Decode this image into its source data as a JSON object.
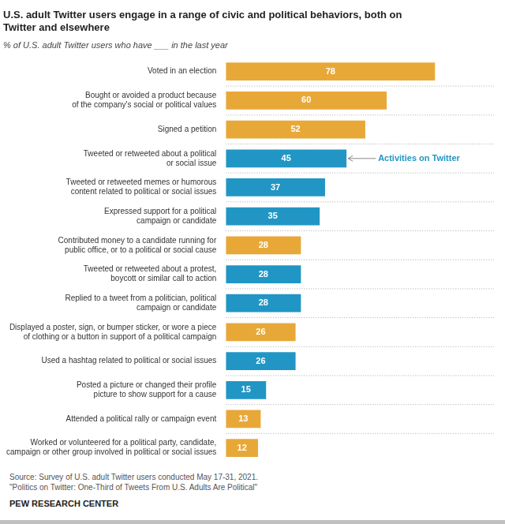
{
  "chart_data": {
    "type": "bar",
    "orientation": "horizontal",
    "title": "U.S. adult Twitter users engage in a range of civic and political behaviors, both on\nTwitter and elsewhere",
    "subtitle": "% of U.S. adult Twitter users who have ___ in the last year",
    "categories": [
      "Voted in an election",
      "Bought or avoided a product because\nof the company's social or political values",
      "Signed a petition",
      "Tweeted or retweeted about a political\nor social issue",
      "Tweeted or retweeted memes or humorous\ncontent related to political or social issues",
      "Expressed support for a political\ncampaign or candidate",
      "Contributed money to a candidate running for\npublic office, or to a political or social cause",
      "Tweeted or retweeted about a protest,\nboycott or similar call to action",
      "Replied to a tweet from a politician, political\ncampaign or candidate",
      "Displayed a poster, sign, or bumper sticker, or wore a piece\nof clothing or a button in support of a political campaign",
      "Used a hashtag related to political or social issues",
      "Posted a picture or changed their profile\npicture to show support for a cause",
      "Attended a political rally or campaign event",
      "Worked or volunteered for a political party, candidate,\ncampaign or other group involved in political or social issues"
    ],
    "values": [
      78,
      60,
      52,
      45,
      37,
      35,
      28,
      28,
      28,
      26,
      26,
      15,
      13,
      12
    ],
    "colors": [
      "#E8A838",
      "#E8A838",
      "#E8A838",
      "#2196C4",
      "#2196C4",
      "#2196C4",
      "#E8A838",
      "#2196C4",
      "#2196C4",
      "#E8A838",
      "#2196C4",
      "#2196C4",
      "#E8A838",
      "#E8A838"
    ],
    "xlim": [
      0,
      100
    ],
    "grid": false,
    "data_labels": true,
    "tick_labels": "y",
    "annotations": [
      {
        "text": "Activities on Twitter",
        "category": "Tweeted or retweeted about a political\nor social issue",
        "color": "#2196C4"
      }
    ],
    "source": "Source: Survey of U.S. adult Twitter users conducted May 17-31, 2021.\n\"Politics on Twitter: One-Third of Tweets From U.S. Adults Are Political\"",
    "footer": "PEW RESEARCH CENTER"
  }
}
